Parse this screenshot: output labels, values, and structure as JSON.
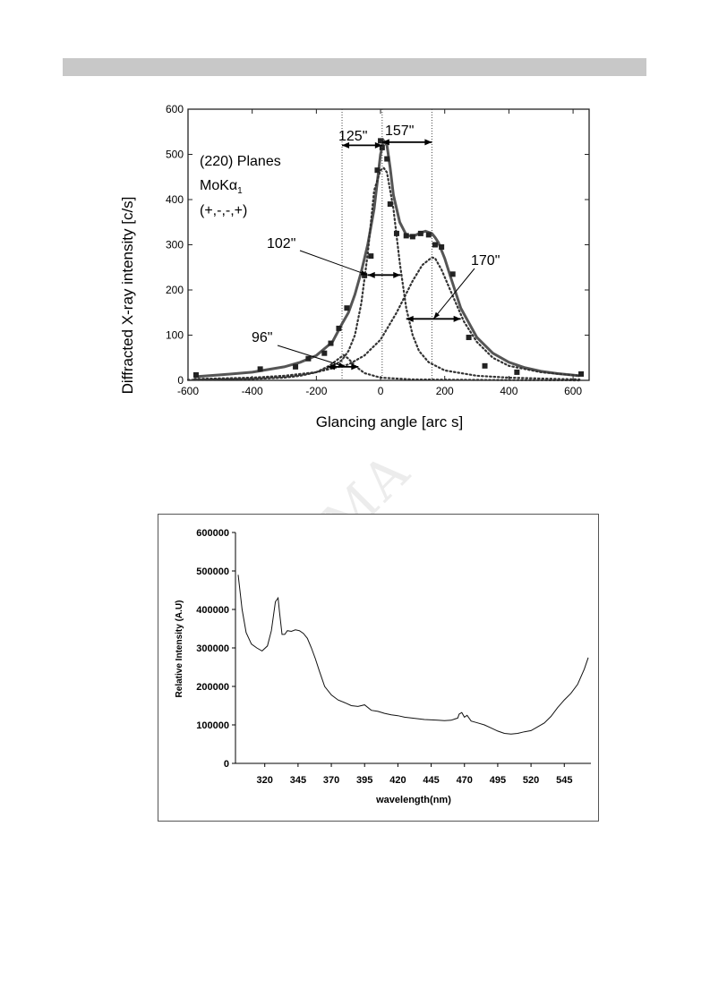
{
  "header": {
    "color": "#c8c8c8"
  },
  "watermark": {
    "text": "MA"
  },
  "chart_data": [
    {
      "type": "line",
      "title": "",
      "xlabel": "Glancing angle [arc s]",
      "ylabel": "Diffracted X-ray intensity [c/s]",
      "xlim": [
        -600,
        650
      ],
      "ylim": [
        0,
        600
      ],
      "xticks": [
        "-600",
        "-400",
        "-200",
        "0",
        "200",
        "400",
        "600"
      ],
      "yticks": [
        "0",
        "100",
        "200",
        "300",
        "400",
        "500",
        "600"
      ],
      "annotations": {
        "planes": "(220) Planes",
        "radiation_base": "MoKα",
        "radiation_sub": "1",
        "arrangement": "(+,-,-,+)",
        "fwhm_labels": [
          "125\"",
          "157\"",
          "102\"",
          "170\"",
          "96\""
        ]
      },
      "series": [
        {
          "style": "solid",
          "x": [
            -580,
            -500,
            -400,
            -300,
            -250,
            -200,
            -150,
            -120,
            -100,
            -80,
            -60,
            -40,
            -20,
            0,
            10,
            20,
            30,
            40,
            60,
            80,
            100,
            120,
            140,
            160,
            170,
            180,
            200,
            220,
            250,
            300,
            350,
            400,
            450,
            500,
            550,
            620
          ],
          "y": [
            8,
            12,
            18,
            30,
            40,
            55,
            85,
            125,
            150,
            190,
            240,
            300,
            380,
            500,
            530,
            520,
            470,
            410,
            350,
            322,
            318,
            325,
            330,
            325,
            316,
            305,
            270,
            225,
            160,
            95,
            60,
            40,
            28,
            20,
            15,
            10
          ]
        },
        {
          "style": "dotted",
          "x": [
            -580,
            -400,
            -300,
            -250,
            -200,
            -150,
            -120,
            -100,
            -80,
            -60,
            -40,
            -20,
            0,
            10,
            20,
            40,
            60,
            80,
            100,
            120,
            150,
            200,
            300,
            400,
            500,
            620
          ],
          "y": [
            2,
            4,
            8,
            12,
            18,
            30,
            45,
            65,
            100,
            170,
            280,
            420,
            465,
            470,
            460,
            380,
            260,
            160,
            100,
            65,
            40,
            22,
            10,
            6,
            4,
            2
          ]
        },
        {
          "style": "dotted",
          "x": [
            -580,
            -400,
            -300,
            -200,
            -100,
            -50,
            0,
            50,
            100,
            130,
            160,
            170,
            190,
            220,
            260,
            300,
            350,
            400,
            500,
            620
          ],
          "y": [
            3,
            6,
            10,
            18,
            35,
            55,
            90,
            150,
            220,
            255,
            272,
            270,
            245,
            195,
            130,
            85,
            50,
            32,
            18,
            10
          ]
        },
        {
          "style": "dotted",
          "x": [
            -600,
            -400,
            -300,
            -250,
            -200,
            -160,
            -130,
            -115,
            -100,
            -80,
            -50,
            0,
            100,
            300,
            620
          ],
          "y": [
            1,
            3,
            6,
            10,
            18,
            32,
            48,
            56,
            48,
            32,
            16,
            6,
            2,
            1,
            0
          ]
        }
      ],
      "markers": {
        "x": [
          -575,
          -375,
          -265,
          -225,
          -175,
          -155,
          -130,
          -105,
          -50,
          -30,
          -10,
          0,
          5,
          20,
          30,
          50,
          80,
          100,
          125,
          150,
          170,
          190,
          225,
          275,
          325,
          425,
          625
        ],
        "y": [
          12,
          25,
          30,
          48,
          60,
          82,
          115,
          160,
          232,
          275,
          465,
          530,
          515,
          490,
          390,
          325,
          320,
          318,
          325,
          322,
          300,
          295,
          235,
          95,
          32,
          18,
          14
        ]
      },
      "vlines": [
        -120,
        5,
        160
      ]
    },
    {
      "type": "line",
      "title": "",
      "xlabel": "wavelength(nm)",
      "ylabel": "Relative Intensity (A.U)",
      "xlim": [
        298,
        565
      ],
      "ylim": [
        0,
        600000
      ],
      "xticks": [
        "320",
        "345",
        "370",
        "395",
        "420",
        "445",
        "470",
        "495",
        "520",
        "545"
      ],
      "yticks": [
        "0",
        "100000",
        "200000",
        "300000",
        "400000",
        "500000",
        "600000"
      ],
      "series": [
        {
          "x": [
            300,
            303,
            306,
            310,
            314,
            318,
            322,
            325,
            328,
            330,
            331,
            333,
            335,
            337,
            340,
            343,
            346,
            349,
            352,
            355,
            358,
            361,
            365,
            370,
            375,
            380,
            385,
            390,
            395,
            400,
            405,
            410,
            415,
            420,
            425,
            430,
            435,
            440,
            445,
            450,
            455,
            460,
            465,
            466,
            468,
            470,
            472,
            475,
            480,
            485,
            490,
            495,
            500,
            505,
            510,
            515,
            520,
            525,
            530,
            535,
            540,
            545,
            550,
            555,
            560,
            563
          ],
          "y": [
            490000,
            400000,
            340000,
            310000,
            300000,
            292000,
            305000,
            345000,
            420000,
            430000,
            395000,
            335000,
            335000,
            345000,
            343000,
            347000,
            345000,
            338000,
            325000,
            300000,
            272000,
            240000,
            200000,
            178000,
            165000,
            158000,
            150000,
            148000,
            152000,
            138000,
            135000,
            130000,
            126000,
            124000,
            120000,
            118000,
            116000,
            114000,
            113000,
            112000,
            111000,
            112000,
            118000,
            128000,
            132000,
            120000,
            125000,
            110000,
            105000,
            100000,
            92000,
            84000,
            78000,
            76000,
            78000,
            82000,
            85000,
            95000,
            105000,
            122000,
            145000,
            165000,
            182000,
            205000,
            245000,
            275000
          ]
        }
      ]
    }
  ]
}
